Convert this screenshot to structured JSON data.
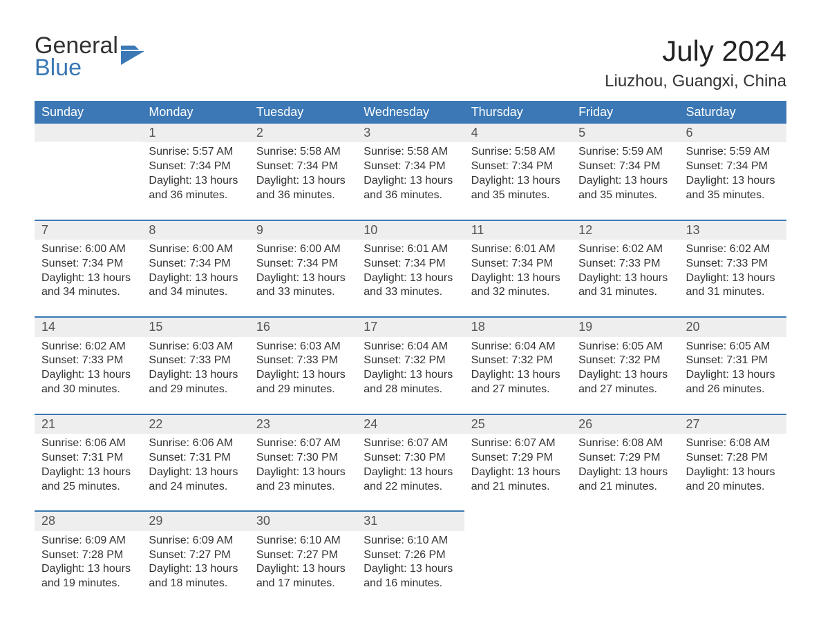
{
  "logo": {
    "line1": "General",
    "line2": "Blue"
  },
  "title": "July 2024",
  "location": "Liuzhou, Guangxi, China",
  "colors": {
    "header_bg": "#3b78b5",
    "header_text": "#ffffff",
    "daynum_bg": "#eeeeee",
    "daynum_border": "#3b78b5",
    "body_text": "#333333",
    "page_bg": "#ffffff"
  },
  "fonts": {
    "body_family": "Arial",
    "title_size_pt": 32,
    "location_size_pt": 18,
    "weekday_size_pt": 14,
    "cell_size_pt": 12
  },
  "weekdays": [
    "Sunday",
    "Monday",
    "Tuesday",
    "Wednesday",
    "Thursday",
    "Friday",
    "Saturday"
  ],
  "weeks": [
    [
      null,
      {
        "n": "1",
        "sunrise": "Sunrise: 5:57 AM",
        "sunset": "Sunset: 7:34 PM",
        "d1": "Daylight: 13 hours",
        "d2": "and 36 minutes."
      },
      {
        "n": "2",
        "sunrise": "Sunrise: 5:58 AM",
        "sunset": "Sunset: 7:34 PM",
        "d1": "Daylight: 13 hours",
        "d2": "and 36 minutes."
      },
      {
        "n": "3",
        "sunrise": "Sunrise: 5:58 AM",
        "sunset": "Sunset: 7:34 PM",
        "d1": "Daylight: 13 hours",
        "d2": "and 36 minutes."
      },
      {
        "n": "4",
        "sunrise": "Sunrise: 5:58 AM",
        "sunset": "Sunset: 7:34 PM",
        "d1": "Daylight: 13 hours",
        "d2": "and 35 minutes."
      },
      {
        "n": "5",
        "sunrise": "Sunrise: 5:59 AM",
        "sunset": "Sunset: 7:34 PM",
        "d1": "Daylight: 13 hours",
        "d2": "and 35 minutes."
      },
      {
        "n": "6",
        "sunrise": "Sunrise: 5:59 AM",
        "sunset": "Sunset: 7:34 PM",
        "d1": "Daylight: 13 hours",
        "d2": "and 35 minutes."
      }
    ],
    [
      {
        "n": "7",
        "sunrise": "Sunrise: 6:00 AM",
        "sunset": "Sunset: 7:34 PM",
        "d1": "Daylight: 13 hours",
        "d2": "and 34 minutes."
      },
      {
        "n": "8",
        "sunrise": "Sunrise: 6:00 AM",
        "sunset": "Sunset: 7:34 PM",
        "d1": "Daylight: 13 hours",
        "d2": "and 34 minutes."
      },
      {
        "n": "9",
        "sunrise": "Sunrise: 6:00 AM",
        "sunset": "Sunset: 7:34 PM",
        "d1": "Daylight: 13 hours",
        "d2": "and 33 minutes."
      },
      {
        "n": "10",
        "sunrise": "Sunrise: 6:01 AM",
        "sunset": "Sunset: 7:34 PM",
        "d1": "Daylight: 13 hours",
        "d2": "and 33 minutes."
      },
      {
        "n": "11",
        "sunrise": "Sunrise: 6:01 AM",
        "sunset": "Sunset: 7:34 PM",
        "d1": "Daylight: 13 hours",
        "d2": "and 32 minutes."
      },
      {
        "n": "12",
        "sunrise": "Sunrise: 6:02 AM",
        "sunset": "Sunset: 7:33 PM",
        "d1": "Daylight: 13 hours",
        "d2": "and 31 minutes."
      },
      {
        "n": "13",
        "sunrise": "Sunrise: 6:02 AM",
        "sunset": "Sunset: 7:33 PM",
        "d1": "Daylight: 13 hours",
        "d2": "and 31 minutes."
      }
    ],
    [
      {
        "n": "14",
        "sunrise": "Sunrise: 6:02 AM",
        "sunset": "Sunset: 7:33 PM",
        "d1": "Daylight: 13 hours",
        "d2": "and 30 minutes."
      },
      {
        "n": "15",
        "sunrise": "Sunrise: 6:03 AM",
        "sunset": "Sunset: 7:33 PM",
        "d1": "Daylight: 13 hours",
        "d2": "and 29 minutes."
      },
      {
        "n": "16",
        "sunrise": "Sunrise: 6:03 AM",
        "sunset": "Sunset: 7:33 PM",
        "d1": "Daylight: 13 hours",
        "d2": "and 29 minutes."
      },
      {
        "n": "17",
        "sunrise": "Sunrise: 6:04 AM",
        "sunset": "Sunset: 7:32 PM",
        "d1": "Daylight: 13 hours",
        "d2": "and 28 minutes."
      },
      {
        "n": "18",
        "sunrise": "Sunrise: 6:04 AM",
        "sunset": "Sunset: 7:32 PM",
        "d1": "Daylight: 13 hours",
        "d2": "and 27 minutes."
      },
      {
        "n": "19",
        "sunrise": "Sunrise: 6:05 AM",
        "sunset": "Sunset: 7:32 PM",
        "d1": "Daylight: 13 hours",
        "d2": "and 27 minutes."
      },
      {
        "n": "20",
        "sunrise": "Sunrise: 6:05 AM",
        "sunset": "Sunset: 7:31 PM",
        "d1": "Daylight: 13 hours",
        "d2": "and 26 minutes."
      }
    ],
    [
      {
        "n": "21",
        "sunrise": "Sunrise: 6:06 AM",
        "sunset": "Sunset: 7:31 PM",
        "d1": "Daylight: 13 hours",
        "d2": "and 25 minutes."
      },
      {
        "n": "22",
        "sunrise": "Sunrise: 6:06 AM",
        "sunset": "Sunset: 7:31 PM",
        "d1": "Daylight: 13 hours",
        "d2": "and 24 minutes."
      },
      {
        "n": "23",
        "sunrise": "Sunrise: 6:07 AM",
        "sunset": "Sunset: 7:30 PM",
        "d1": "Daylight: 13 hours",
        "d2": "and 23 minutes."
      },
      {
        "n": "24",
        "sunrise": "Sunrise: 6:07 AM",
        "sunset": "Sunset: 7:30 PM",
        "d1": "Daylight: 13 hours",
        "d2": "and 22 minutes."
      },
      {
        "n": "25",
        "sunrise": "Sunrise: 6:07 AM",
        "sunset": "Sunset: 7:29 PM",
        "d1": "Daylight: 13 hours",
        "d2": "and 21 minutes."
      },
      {
        "n": "26",
        "sunrise": "Sunrise: 6:08 AM",
        "sunset": "Sunset: 7:29 PM",
        "d1": "Daylight: 13 hours",
        "d2": "and 21 minutes."
      },
      {
        "n": "27",
        "sunrise": "Sunrise: 6:08 AM",
        "sunset": "Sunset: 7:28 PM",
        "d1": "Daylight: 13 hours",
        "d2": "and 20 minutes."
      }
    ],
    [
      {
        "n": "28",
        "sunrise": "Sunrise: 6:09 AM",
        "sunset": "Sunset: 7:28 PM",
        "d1": "Daylight: 13 hours",
        "d2": "and 19 minutes."
      },
      {
        "n": "29",
        "sunrise": "Sunrise: 6:09 AM",
        "sunset": "Sunset: 7:27 PM",
        "d1": "Daylight: 13 hours",
        "d2": "and 18 minutes."
      },
      {
        "n": "30",
        "sunrise": "Sunrise: 6:10 AM",
        "sunset": "Sunset: 7:27 PM",
        "d1": "Daylight: 13 hours",
        "d2": "and 17 minutes."
      },
      {
        "n": "31",
        "sunrise": "Sunrise: 6:10 AM",
        "sunset": "Sunset: 7:26 PM",
        "d1": "Daylight: 13 hours",
        "d2": "and 16 minutes."
      },
      null,
      null,
      null
    ]
  ]
}
